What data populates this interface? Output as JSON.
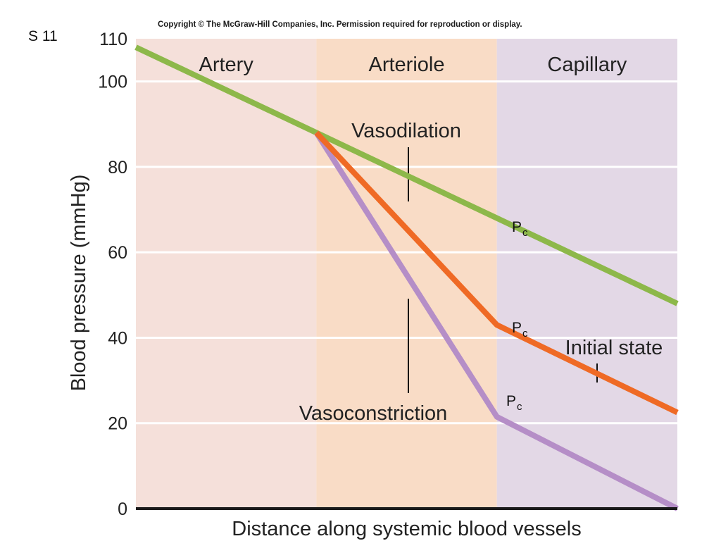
{
  "slide_label": "S 11",
  "copyright": "Copyright © The McGraw-Hill Companies, Inc. Permission required for reproduction or display.",
  "colors": {
    "artery_bg": "#f5e0da",
    "arteriole_bg": "#f9dcc6",
    "capillary_bg": "#e3d8e6",
    "vasodilation": "#8db84a",
    "initial_state": "#ef6a25",
    "vasoconstriction": "#b58ec7"
  },
  "chart_data": {
    "type": "line",
    "title": "",
    "xlabel": "Distance along systemic blood vessels",
    "ylabel": "Blood pressure (mmHg)",
    "xlim": [
      0,
      3
    ],
    "ylim": [
      0,
      110
    ],
    "yticks": [
      0,
      20,
      40,
      60,
      80,
      100,
      110
    ],
    "grid": true,
    "regions": [
      {
        "label": "Artery",
        "x0": 0,
        "x1": 1
      },
      {
        "label": "Arteriole",
        "x0": 1,
        "x1": 2
      },
      {
        "label": "Capillary",
        "x0": 2,
        "x1": 3
      }
    ],
    "series": [
      {
        "key": "vasodilation",
        "x": [
          0,
          1,
          2,
          3
        ],
        "y": [
          108,
          88,
          68,
          48
        ]
      },
      {
        "key": "initial_state",
        "x": [
          1,
          2,
          3
        ],
        "y": [
          88,
          43,
          22.5
        ]
      },
      {
        "key": "vasoconstriction",
        "x": [
          1,
          2,
          3
        ],
        "y": [
          88,
          21.5,
          0
        ]
      }
    ],
    "annotations": [
      {
        "key": "vasodilation_label",
        "text": "Vasodilation"
      },
      {
        "key": "initial_state_label",
        "text": "Initial state"
      },
      {
        "key": "vasoconstriction_label",
        "text": "Vasoconstriction"
      },
      {
        "key": "pc_vasodilation",
        "text": "P",
        "sub": "c"
      },
      {
        "key": "pc_initial",
        "text": "P",
        "sub": "c"
      },
      {
        "key": "pc_vasoconstriction",
        "text": "P",
        "sub": "c"
      }
    ]
  }
}
